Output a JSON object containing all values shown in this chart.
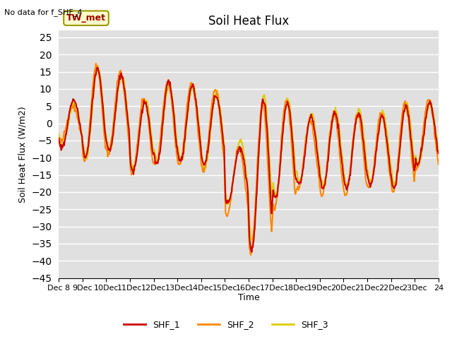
{
  "title": "Soil Heat Flux",
  "ylabel": "Soil Heat Flux (W/m2)",
  "xlabel": "Time",
  "note": "No data for f_SHF_4",
  "legend_label": "TW_met",
  "ylim": [
    -45,
    27
  ],
  "yticks": [
    -45,
    -40,
    -35,
    -30,
    -25,
    -20,
    -15,
    -10,
    -5,
    0,
    5,
    10,
    15,
    20,
    25
  ],
  "colors": {
    "SHF_1": "#cc0000",
    "SHF_2": "#ff8800",
    "SHF_3": "#ddcc00"
  },
  "fig_bg_color": "#ffffff",
  "plot_bg_color": "#e0e0e0",
  "grid_color": "#ffffff",
  "x_tick_labels": [
    "Dec 8",
    "9Dec",
    "10Dec",
    "11Dec",
    "12Dec",
    "13Dec",
    "14Dec",
    "15Dec",
    "16Dec",
    "17Dec",
    "18Dec",
    "19Dec",
    "20Dec",
    "21Dec",
    "22Dec",
    "23Dec",
    "24"
  ],
  "line_width": 1.5,
  "n_days": 16,
  "n_per_day": 48
}
